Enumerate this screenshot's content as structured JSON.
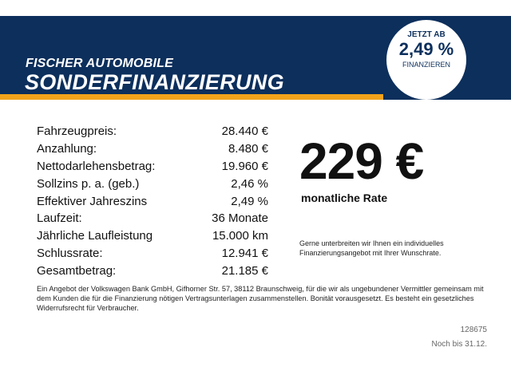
{
  "banner": {
    "brand": "FISCHER AUTOMOBILE",
    "headline": "SONDERFINANZIERUNG",
    "badge": {
      "line1": "JETZT AB",
      "line2": "2,49 %",
      "line3": "FINANZIEREN"
    },
    "colors": {
      "background": "#0c2f5c",
      "stripe": "#f2a31b"
    }
  },
  "finance": {
    "rows": [
      {
        "label": "Fahrzeugpreis:",
        "value": "28.440 €"
      },
      {
        "label": "Anzahlung:",
        "value": "8.480 €"
      },
      {
        "label": "Nettodarlehensbetrag:",
        "value": "19.960 €"
      },
      {
        "label": "Sollzins p. a. (geb.)",
        "value": "2,46 %"
      },
      {
        "label": "Effektiver Jahreszins",
        "value": "2,49 %"
      },
      {
        "label": "Laufzeit:",
        "value": "36 Monate"
      },
      {
        "label": "Jährliche Laufleistung",
        "value": "15.000 km"
      },
      {
        "label": "Schlussrate:",
        "value": "12.941 €"
      },
      {
        "label": "Gesamtbetrag:",
        "value": "21.185 €"
      }
    ]
  },
  "rate": {
    "amount": "229 €",
    "label": "monatliche Rate",
    "note": "Gerne unterbreiten wir Ihnen ein individuelles Finanzierungsangebot mit Ihrer Wunschrate."
  },
  "disclaimer": "Ein Angebot der Volkswagen Bank GmbH, Gifhorner Str. 57, 38112 Braunschweig, für die wir als ungebundener Vermittler gemeinsam mit dem Kunden die für die Finanzierung nötigen Vertragsunterlagen zusammenstellen. Bonität vorausgesetzt. Es besteht ein gesetzliches Widerrufsrecht für Verbraucher.",
  "footer": {
    "code": "128675",
    "valid": "Noch bis 31.12."
  }
}
